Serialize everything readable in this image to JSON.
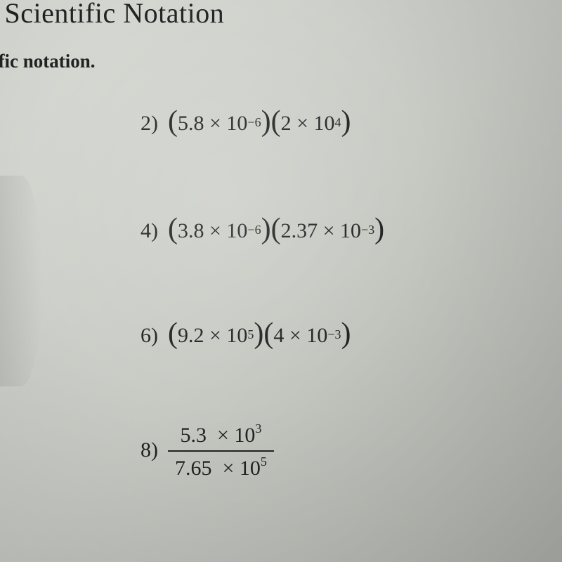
{
  "header": {
    "title": "ng Scientific Notation",
    "subtitle": "ific notation."
  },
  "problems": {
    "p2": {
      "number": "2)",
      "a_coef": "5.8",
      "a_exp": "−6",
      "b_coef": "2",
      "b_exp": "4"
    },
    "p4": {
      "number": "4)",
      "a_coef": "3.8",
      "a_exp": "−6",
      "b_coef": "2.37",
      "b_exp": "−3"
    },
    "p6": {
      "number": "6)",
      "a_coef": "9.2",
      "a_exp": "5",
      "b_coef": "4",
      "b_exp": "−3"
    },
    "p8": {
      "number": "8)",
      "top_coef": "5.3",
      "top_exp": "3",
      "bot_coef": "7.65",
      "bot_exp": "5"
    }
  },
  "style": {
    "text_color": "#222222",
    "title_fontsize": 40,
    "subtitle_fontsize": 27,
    "problem_fontsize": 30,
    "sup_fontsize": 18,
    "paren_fontsize": 42,
    "font_family": "Times New Roman"
  }
}
